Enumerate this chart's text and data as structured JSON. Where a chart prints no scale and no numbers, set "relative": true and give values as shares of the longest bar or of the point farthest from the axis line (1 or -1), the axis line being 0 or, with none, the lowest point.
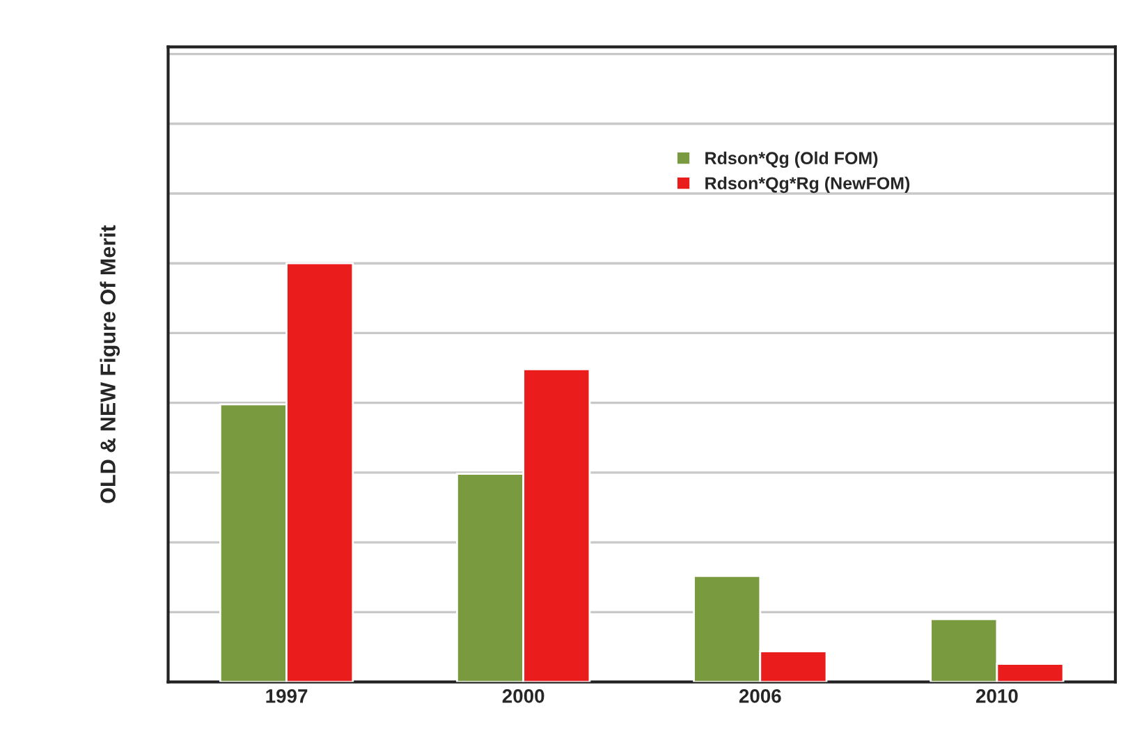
{
  "chart_data": {
    "type": "bar",
    "ylabel": "OLD & NEW Figure Of Merit",
    "relative": true,
    "categories": [
      "1997",
      "2000",
      "2006",
      "2010"
    ],
    "series": [
      {
        "name": "Rdson*Qg (Old FOM)",
        "color": "#7a9a3f",
        "values": [
          0.663,
          0.497,
          0.253,
          0.15
        ]
      },
      {
        "name": "Rdson*Qg*Rg (NewFOM)",
        "color": "#ea1c1c",
        "values": [
          1,
          0.747,
          0.073,
          0.043
        ]
      }
    ],
    "grid": "y",
    "legend": "top right"
  }
}
